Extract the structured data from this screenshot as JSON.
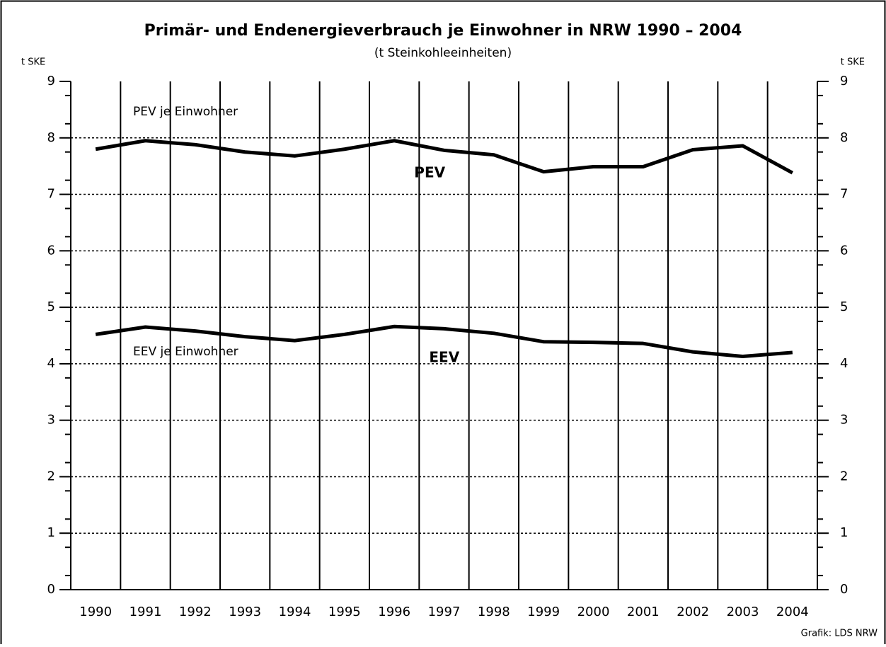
{
  "chart_data": {
    "type": "line",
    "title": "Primär- und Endenergieverbrauch je Einwohner in NRW 1990 – 2004",
    "subtitle": "(t Steinkohleeinheiten)",
    "y_axis_label": "t SKE",
    "y2_axis_label": "t SKE",
    "source": "Grafik: LDS NRW",
    "categories": [
      "1990",
      "1991",
      "1992",
      "1993",
      "1994",
      "1995",
      "1996",
      "1997",
      "1998",
      "1999",
      "2000",
      "2001",
      "2002",
      "2003",
      "2004"
    ],
    "series": [
      {
        "name": "PEV",
        "color": "#000000",
        "values": [
          7.8,
          7.95,
          7.88,
          7.75,
          7.68,
          7.8,
          7.95,
          7.78,
          7.7,
          7.4,
          7.49,
          7.49,
          7.79,
          7.86,
          7.38
        ]
      },
      {
        "name": "EEV",
        "color": "#000000",
        "values": [
          4.52,
          4.65,
          4.58,
          4.48,
          4.41,
          4.52,
          4.66,
          4.62,
          4.54,
          4.39,
          4.38,
          4.36,
          4.21,
          4.13,
          4.2
        ]
      }
    ],
    "annotations": [
      "PEV je Einwohner",
      "EEV je Einwohner"
    ],
    "ylim": [
      0,
      9
    ],
    "yticks": [
      0,
      1,
      2,
      3,
      4,
      5,
      6,
      7,
      8,
      9
    ],
    "y2lim": [
      0,
      9
    ],
    "y2ticks": [
      0,
      1,
      2,
      3,
      4,
      5,
      6,
      7,
      8,
      9
    ],
    "grid": true
  }
}
